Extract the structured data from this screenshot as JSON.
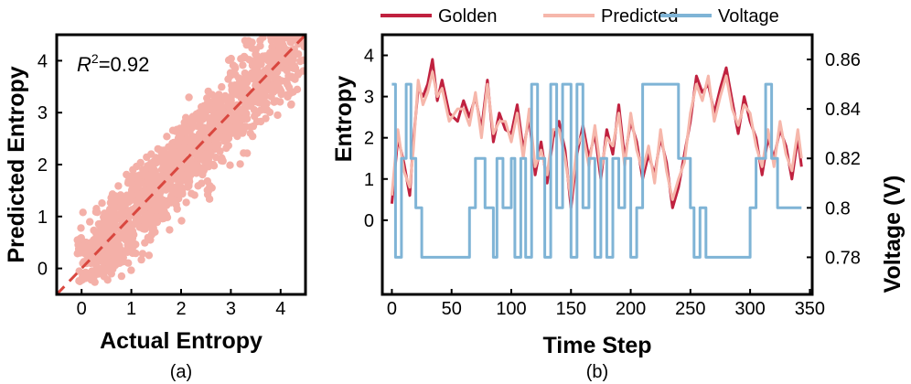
{
  "chart_data": [
    {
      "id": "a",
      "type": "scatter",
      "panel_label": "(a)",
      "xlabel": "Actual Entropy",
      "ylabel": "Predicted Entropy",
      "xlim": [
        -0.5,
        4.5
      ],
      "ylim": [
        -0.5,
        4.5
      ],
      "xticks": [
        0,
        1,
        2,
        3,
        4
      ],
      "yticks": [
        0,
        1,
        2,
        3,
        4
      ],
      "annotation": {
        "base": "R",
        "sup": "2",
        "rest": "=0.92"
      },
      "fit_line": {
        "x": [
          -0.5,
          4.5
        ],
        "y": [
          -0.5,
          4.5
        ],
        "style": "dashed",
        "color": "#d9473f"
      },
      "point_color": "#f4b0a8",
      "point_cloud": {
        "description_points": [
          [
            0.0,
            0.0
          ],
          [
            0.5,
            0.5
          ],
          [
            1.0,
            1.0
          ],
          [
            1.5,
            1.5
          ],
          [
            2.0,
            2.0
          ],
          [
            2.5,
            2.5
          ],
          [
            3.0,
            3.0
          ],
          [
            3.5,
            3.5
          ],
          [
            4.0,
            3.9
          ],
          [
            4.3,
            4.3
          ]
        ],
        "spread": 0.55
      }
    },
    {
      "id": "b",
      "type": "line",
      "panel_label": "(b)",
      "xlabel": "Time Step",
      "ylabel": "Entropy",
      "y2label": "Voltage (V)",
      "xlim": [
        -8,
        352
      ],
      "ylim": [
        -1.8,
        4.5
      ],
      "xticks": [
        0,
        50,
        100,
        150,
        200,
        250,
        300,
        350
      ],
      "yticks": [
        0,
        1,
        2,
        3,
        4
      ],
      "y2lim": [
        0.765,
        0.87
      ],
      "y2ticks": [
        0.78,
        0.8,
        0.82,
        0.84,
        0.86
      ],
      "y2ticklabels": [
        "0.78",
        "0.8",
        "0.82",
        "0.84",
        "0.86"
      ],
      "legend_position": "top",
      "series": [
        {
          "name": "Golden",
          "color": "#c0213f",
          "axis": "left",
          "x": [
            0,
            5,
            10,
            15,
            18,
            22,
            26,
            30,
            34,
            38,
            42,
            48,
            55,
            60,
            65,
            70,
            75,
            80,
            85,
            90,
            95,
            100,
            105,
            110,
            115,
            120,
            125,
            130,
            135,
            140,
            145,
            150,
            155,
            160,
            165,
            170,
            175,
            180,
            185,
            190,
            195,
            200,
            205,
            210,
            215,
            220,
            225,
            230,
            235,
            240,
            245,
            250,
            255,
            260,
            265,
            270,
            275,
            280,
            285,
            290,
            295,
            300,
            305,
            310,
            315,
            320,
            325,
            330,
            335,
            340,
            343
          ],
          "y": [
            0.4,
            2.0,
            1.4,
            0.6,
            1.9,
            3.2,
            3.0,
            3.3,
            3.9,
            2.9,
            3.4,
            2.6,
            2.4,
            2.9,
            2.5,
            3.0,
            2.2,
            3.4,
            1.9,
            2.6,
            2.2,
            2.1,
            2.8,
            1.7,
            2.5,
            1.1,
            1.9,
            0.9,
            2.0,
            2.4,
            1.7,
            0.3,
            1.6,
            2.3,
            1.5,
            2.1,
            1.0,
            2.2,
            1.6,
            2.8,
            1.5,
            2.4,
            1.9,
            1.0,
            1.6,
            1.1,
            2.0,
            1.4,
            0.3,
            0.8,
            1.6,
            2.4,
            3.5,
            3.1,
            3.3,
            2.6,
            3.2,
            3.7,
            2.9,
            2.1,
            3.0,
            2.4,
            2.0,
            1.1,
            2.0,
            1.5,
            2.2,
            1.8,
            1.0,
            2.0,
            1.3
          ]
        },
        {
          "name": "Predicted",
          "color": "#f6b7ab",
          "axis": "left",
          "x": [
            0,
            5,
            10,
            15,
            18,
            22,
            26,
            30,
            34,
            38,
            42,
            48,
            55,
            60,
            65,
            70,
            75,
            80,
            85,
            90,
            95,
            100,
            105,
            110,
            115,
            120,
            125,
            130,
            135,
            140,
            145,
            150,
            155,
            160,
            165,
            170,
            175,
            180,
            185,
            190,
            195,
            200,
            205,
            210,
            215,
            220,
            225,
            230,
            235,
            240,
            245,
            250,
            255,
            260,
            265,
            270,
            275,
            280,
            285,
            290,
            295,
            300,
            305,
            310,
            315,
            320,
            325,
            330,
            335,
            340,
            343
          ],
          "y": [
            0.6,
            2.2,
            1.2,
            0.8,
            1.7,
            3.4,
            2.8,
            3.1,
            3.6,
            3.0,
            3.2,
            2.4,
            2.7,
            2.7,
            2.3,
            3.1,
            2.0,
            3.3,
            2.1,
            2.4,
            2.4,
            1.9,
            2.6,
            1.5,
            2.7,
            1.3,
            1.7,
            1.1,
            2.2,
            2.2,
            1.5,
            0.5,
            1.8,
            2.1,
            1.3,
            2.3,
            1.2,
            2.0,
            1.8,
            2.6,
            1.3,
            2.6,
            1.7,
            1.2,
            1.8,
            0.9,
            2.2,
            1.2,
            0.5,
            1.0,
            1.4,
            2.6,
            3.3,
            2.9,
            3.5,
            2.4,
            3.0,
            3.5,
            2.7,
            2.3,
            2.8,
            2.6,
            1.8,
            1.3,
            2.2,
            1.3,
            2.4,
            1.6,
            1.2,
            2.2,
            1.5
          ]
        },
        {
          "name": "Voltage",
          "color": "#7fb4d6",
          "axis": "right",
          "x": [
            0,
            3,
            3,
            8,
            8,
            12,
            12,
            16,
            16,
            20,
            20,
            25,
            25,
            30,
            30,
            65,
            65,
            70,
            70,
            78,
            78,
            85,
            85,
            88,
            88,
            93,
            93,
            100,
            100,
            103,
            103,
            108,
            108,
            112,
            112,
            117,
            117,
            122,
            122,
            128,
            128,
            133,
            133,
            138,
            138,
            143,
            143,
            150,
            150,
            155,
            155,
            160,
            160,
            165,
            165,
            170,
            170,
            175,
            175,
            180,
            180,
            185,
            185,
            190,
            190,
            195,
            195,
            200,
            200,
            205,
            205,
            210,
            210,
            215,
            215,
            230,
            230,
            240,
            240,
            250,
            250,
            253,
            253,
            258,
            258,
            263,
            263,
            270,
            270,
            275,
            275,
            285,
            285,
            300,
            300,
            305,
            305,
            313,
            313,
            318,
            318,
            323,
            323,
            335,
            335,
            343
          ],
          "y": [
            0.85,
            0.85,
            0.78,
            0.78,
            0.82,
            0.82,
            0.85,
            0.85,
            0.82,
            0.82,
            0.8,
            0.8,
            0.78,
            0.78,
            0.78,
            0.78,
            0.8,
            0.8,
            0.82,
            0.82,
            0.8,
            0.8,
            0.78,
            0.78,
            0.82,
            0.82,
            0.8,
            0.8,
            0.82,
            0.82,
            0.78,
            0.78,
            0.82,
            0.82,
            0.78,
            0.78,
            0.85,
            0.85,
            0.82,
            0.82,
            0.78,
            0.78,
            0.85,
            0.85,
            0.8,
            0.8,
            0.85,
            0.85,
            0.78,
            0.78,
            0.85,
            0.85,
            0.8,
            0.8,
            0.82,
            0.82,
            0.78,
            0.78,
            0.82,
            0.82,
            0.78,
            0.78,
            0.82,
            0.82,
            0.8,
            0.8,
            0.82,
            0.82,
            0.78,
            0.78,
            0.8,
            0.8,
            0.85,
            0.85,
            0.85,
            0.85,
            0.85,
            0.85,
            0.82,
            0.82,
            0.8,
            0.8,
            0.78,
            0.78,
            0.8,
            0.8,
            0.78,
            0.78,
            0.78,
            0.78,
            0.78,
            0.78,
            0.78,
            0.78,
            0.8,
            0.8,
            0.82,
            0.82,
            0.85,
            0.85,
            0.82,
            0.82,
            0.8,
            0.8,
            0.8,
            0.8
          ]
        }
      ]
    }
  ]
}
